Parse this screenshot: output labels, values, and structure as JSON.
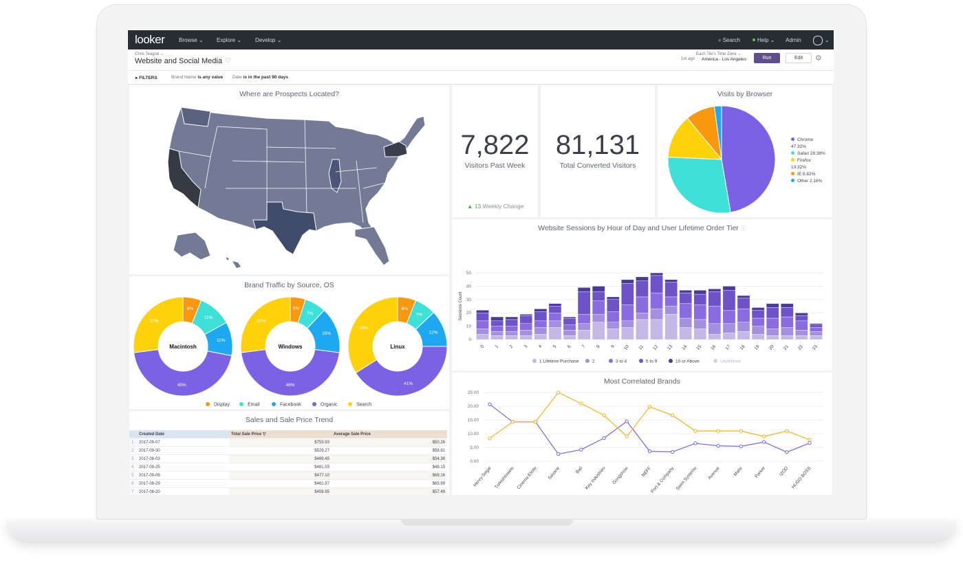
{
  "nav": {
    "logo": "looker",
    "items": [
      "Browse ⌄",
      "Explore ⌄",
      "Develop ⌄"
    ],
    "search": "Search",
    "help": "Help ⌄",
    "admin": "Admin"
  },
  "header": {
    "owner": "Chris Teague ⌄",
    "title": "Website and Social Media",
    "tz_label": "Each Tile's Time Zone ⌄",
    "last_run": "1m ago",
    "tz_value": "America - Los Angeles",
    "run_label": "Run",
    "edit_label": "Edit"
  },
  "filters": {
    "toggle": "FILTERS",
    "brand_label": "Brand Name",
    "brand_value": "is any value",
    "date_label": "Date",
    "date_value": "is in the past 90 days"
  },
  "map_tile": {
    "title": "Where are Prospects Located?"
  },
  "visitors_tile": {
    "value": "7,822",
    "label": "Visitors Past Week",
    "change_value": "13",
    "change_label": "Weekly Change"
  },
  "converted_tile": {
    "value": "81,131",
    "label": "Total Converted Visitors"
  },
  "browser_tile": {
    "title": "Visits by Browser",
    "legend": [
      {
        "label": "Chrome",
        "sub": "47.32%"
      },
      {
        "label": "Safari 28.38%",
        "sub": ""
      },
      {
        "label": "Firefox",
        "sub": "13.32%"
      },
      {
        "label": "IE 8.82%",
        "sub": ""
      },
      {
        "label": "Other 2.16%",
        "sub": ""
      }
    ]
  },
  "sessions_tile": {
    "title": "Website Sessions by Hour of Day and User Lifetime Order Tier",
    "legend": [
      "1 Lifetime Purchase",
      "2",
      "3 to 4",
      "5 to 9",
      "10 or Above",
      "Undefined"
    ]
  },
  "brand_traffic_tile": {
    "title": "Brand Traffic by Source, OS",
    "legend": [
      "Display",
      "Email",
      "Facebook",
      "Organic",
      "Search"
    ]
  },
  "correlated_tile": {
    "title": "Most Correlated Brands"
  },
  "sales_tile": {
    "title": "Sales and Sale Price Trend",
    "columns": [
      "Created Date",
      "Total Sale Price ▽",
      "Average Sale Price"
    ],
    "rows": [
      {
        "n": "1",
        "date": "2017-09-07",
        "total": "$753.93",
        "avg": "$50.26"
      },
      {
        "n": "2",
        "date": "2017-09-30",
        "total": "$529.27",
        "avg": "$58.81"
      },
      {
        "n": "3",
        "date": "2017-08-03",
        "total": "$489.45",
        "avg": "$54.38"
      },
      {
        "n": "4",
        "date": "2017-09-25",
        "total": "$481.55",
        "avg": "$48.15"
      },
      {
        "n": "5",
        "date": "2017-09-06",
        "total": "$477.10",
        "avg": "$68.16"
      },
      {
        "n": "6",
        "date": "2017-08-29",
        "total": "$461.97",
        "avg": "$65.99"
      },
      {
        "n": "7",
        "date": "2017-08-20",
        "total": "$459.95",
        "avg": "$57.49"
      },
      {
        "n": "8",
        "date": "2017-08-10",
        "total": "$453.30",
        "avg": "$57.35"
      }
    ]
  },
  "colors": {
    "purple": "#7b61e4",
    "teal": "#3ee0d8",
    "yellow": "#fdd20a",
    "orange": "#f7980e",
    "blue": "#1ea8f0",
    "tier1": "#c3b8e6",
    "tier2": "#a590e0",
    "tier3": "#8a6be0",
    "tier4": "#6d52c8",
    "tier5": "#4a3a9a"
  },
  "chart_data": [
    {
      "type": "pie",
      "title": "Visits by Browser",
      "categories": [
        "Chrome",
        "Safari",
        "Firefox",
        "IE",
        "Other"
      ],
      "values": [
        47.32,
        28.38,
        13.32,
        8.82,
        2.16
      ]
    },
    {
      "type": "pie",
      "title": "Brand Traffic by Source, OS",
      "charts": [
        {
          "name": "Macintosh",
          "categories": [
            "Display",
            "Email",
            "Facebook",
            "Organic",
            "Search"
          ],
          "values": [
            6,
            11,
            11,
            45,
            27
          ]
        },
        {
          "name": "Windows",
          "categories": [
            "Display",
            "Email",
            "Facebook",
            "Organic",
            "Search"
          ],
          "values": [
            5,
            7,
            15,
            46,
            27
          ]
        },
        {
          "name": "Linux",
          "categories": [
            "Display",
            "Email",
            "Facebook",
            "Organic",
            "Search"
          ],
          "values": [
            6,
            7,
            12,
            41,
            34
          ]
        }
      ]
    },
    {
      "type": "bar",
      "title": "Website Sessions by Hour of Day and User Lifetime Order Tier",
      "ylabel": "Sessions Count",
      "ylim": [
        0,
        50
      ],
      "yticks": [
        0,
        10,
        20,
        30,
        40,
        50
      ],
      "categories": [
        "0",
        "1",
        "2",
        "3",
        "4",
        "5",
        "6",
        "7",
        "8",
        "9",
        "10",
        "11",
        "12",
        "13",
        "14",
        "15",
        "16",
        "17",
        "18",
        "19",
        "20",
        "21",
        "22",
        "23"
      ],
      "series": [
        {
          "name": "1 Lifetime Purchase",
          "values": [
            4,
            3,
            3,
            3,
            4,
            9,
            3,
            7,
            13,
            8,
            9,
            15,
            15,
            19,
            9,
            8,
            4,
            5,
            6,
            4,
            3,
            3,
            3,
            3
          ]
        },
        {
          "name": "2",
          "values": [
            4,
            3,
            3,
            4,
            5,
            5,
            4,
            5,
            6,
            5,
            5,
            5,
            8,
            6,
            7,
            7,
            8,
            7,
            7,
            6,
            5,
            6,
            4,
            3
          ]
        },
        {
          "name": "3 to 4",
          "values": [
            6,
            4,
            4,
            5,
            5,
            6,
            4,
            7,
            10,
            8,
            12,
            12,
            12,
            7,
            11,
            11,
            13,
            10,
            10,
            6,
            8,
            8,
            7,
            3
          ]
        },
        {
          "name": "5 to 9",
          "values": [
            6,
            4,
            5,
            6,
            7,
            5,
            5,
            17,
            7,
            9,
            16,
            12,
            13,
            11,
            8,
            8,
            11,
            15,
            8,
            6,
            8,
            7,
            4,
            2
          ]
        },
        {
          "name": "10 or Above",
          "values": [
            2,
            3,
            2,
            1,
            2,
            2,
            1,
            3,
            4,
            2,
            3,
            3,
            2,
            2,
            2,
            3,
            2,
            3,
            2,
            2,
            3,
            3,
            2,
            1
          ]
        }
      ]
    },
    {
      "type": "line",
      "title": "Most Correlated Brands",
      "ylim": [
        0,
        25
      ],
      "yticks": [
        "0.00",
        "5.00",
        "10.00",
        "15.00",
        "20.00",
        "25.00"
      ],
      "categories": [
        "Henry Segal",
        "Turkishtowels",
        "Cinema Etoile",
        "Savane",
        "Bali",
        "Key Industries",
        "Gongshow",
        "NEFF",
        "Port & Company",
        "Swim Systems",
        "Avenue",
        "Matix",
        "Parker",
        "IZOD",
        "HUGO BOSS"
      ],
      "series": [
        {
          "color": "#7b61e4",
          "values": [
            20.7,
            14.3,
            14.3,
            2.6,
            4.2,
            8.4,
            14.5,
            3.6,
            3.4,
            6.5,
            5.6,
            5.4,
            7.0,
            3.3,
            6.6
          ]
        },
        {
          "color": "#f2b21c",
          "values": [
            8.3,
            14.3,
            14.3,
            25.0,
            21.0,
            16.7,
            9.0,
            19.8,
            16.7,
            11.0,
            11.0,
            11.0,
            9.0,
            11.0,
            7.8
          ]
        }
      ]
    }
  ]
}
